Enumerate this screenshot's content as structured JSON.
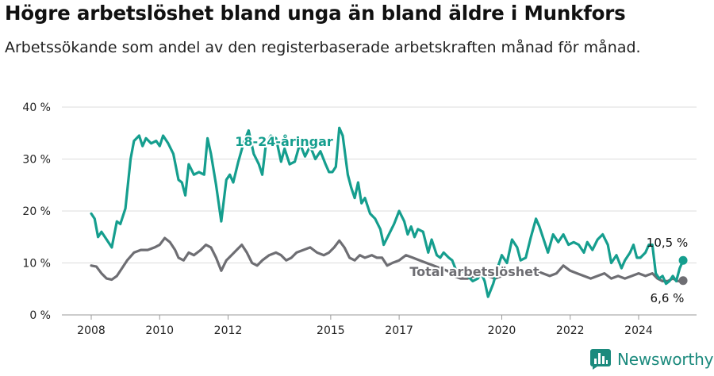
{
  "title": "Högre arbetslöshet bland unga än bland äldre i Munkfors",
  "subtitle": "Arbetssökande som andel av den registerbaserade arbetskraften månad för månad.",
  "brand": {
    "name": "Newsworthy",
    "logo_icon": "newsworthy-bar-chart-icon",
    "color": "#1b8a7d"
  },
  "chart_data": {
    "type": "line",
    "ylim": [
      0,
      40
    ],
    "yticks": [
      0,
      10,
      20,
      30,
      40
    ],
    "ytick_labels": [
      "0 %",
      "10 %",
      "20 %",
      "30 %",
      "40 %"
    ],
    "xlim": [
      2007.5,
      2025.7
    ],
    "xticks": [
      2008,
      2010,
      2012,
      2015,
      2017,
      2020,
      2022,
      2024
    ],
    "xtick_labels": [
      "2008",
      "2010",
      "2012",
      "2015",
      "2017",
      "2020",
      "2022",
      "2024"
    ],
    "grid": true,
    "series": [
      {
        "name": "18-24-åringar",
        "color": "#159e8e",
        "end_label": "10,5 %",
        "points": [
          [
            2008.0,
            19.5
          ],
          [
            2008.1,
            18.5
          ],
          [
            2008.2,
            15.0
          ],
          [
            2008.3,
            16.0
          ],
          [
            2008.45,
            14.5
          ],
          [
            2008.6,
            13.0
          ],
          [
            2008.75,
            18.0
          ],
          [
            2008.85,
            17.5
          ],
          [
            2009.0,
            20.5
          ],
          [
            2009.15,
            30.0
          ],
          [
            2009.25,
            33.5
          ],
          [
            2009.4,
            34.5
          ],
          [
            2009.5,
            32.5
          ],
          [
            2009.6,
            34.0
          ],
          [
            2009.75,
            33.0
          ],
          [
            2009.9,
            33.5
          ],
          [
            2010.0,
            32.5
          ],
          [
            2010.1,
            34.5
          ],
          [
            2010.25,
            33.0
          ],
          [
            2010.4,
            31.0
          ],
          [
            2010.55,
            26.0
          ],
          [
            2010.65,
            25.5
          ],
          [
            2010.75,
            23.0
          ],
          [
            2010.85,
            29.0
          ],
          [
            2011.0,
            27.0
          ],
          [
            2011.15,
            27.5
          ],
          [
            2011.3,
            27.0
          ],
          [
            2011.4,
            34.0
          ],
          [
            2011.5,
            31.0
          ],
          [
            2011.65,
            25.0
          ],
          [
            2011.8,
            18.0
          ],
          [
            2011.95,
            26.0
          ],
          [
            2012.05,
            27.0
          ],
          [
            2012.15,
            25.5
          ],
          [
            2012.3,
            29.5
          ],
          [
            2012.45,
            33.0
          ],
          [
            2012.6,
            35.5
          ],
          [
            2012.75,
            31.0
          ],
          [
            2012.9,
            29.0
          ],
          [
            2013.0,
            27.0
          ],
          [
            2013.1,
            32.5
          ],
          [
            2013.25,
            34.5
          ],
          [
            2013.4,
            34.0
          ],
          [
            2013.55,
            29.5
          ],
          [
            2013.65,
            32.0
          ],
          [
            2013.8,
            29.0
          ],
          [
            2013.95,
            29.5
          ],
          [
            2014.1,
            33.0
          ],
          [
            2014.25,
            30.5
          ],
          [
            2014.4,
            32.5
          ],
          [
            2014.55,
            30.0
          ],
          [
            2014.7,
            31.5
          ],
          [
            2014.85,
            29.0
          ],
          [
            2014.95,
            27.5
          ],
          [
            2015.05,
            27.5
          ],
          [
            2015.15,
            28.5
          ],
          [
            2015.25,
            36.0
          ],
          [
            2015.35,
            34.5
          ],
          [
            2015.5,
            27.0
          ],
          [
            2015.6,
            24.5
          ],
          [
            2015.7,
            22.5
          ],
          [
            2015.8,
            25.5
          ],
          [
            2015.9,
            21.5
          ],
          [
            2016.0,
            22.5
          ],
          [
            2016.15,
            19.5
          ],
          [
            2016.3,
            18.5
          ],
          [
            2016.45,
            16.5
          ],
          [
            2016.55,
            13.5
          ],
          [
            2016.7,
            15.5
          ],
          [
            2016.85,
            17.5
          ],
          [
            2017.0,
            20.0
          ],
          [
            2017.15,
            18.0
          ],
          [
            2017.25,
            15.5
          ],
          [
            2017.35,
            17.0
          ],
          [
            2017.45,
            15.0
          ],
          [
            2017.55,
            16.5
          ],
          [
            2017.7,
            16.0
          ],
          [
            2017.85,
            12.0
          ],
          [
            2017.95,
            14.5
          ],
          [
            2018.1,
            11.5
          ],
          [
            2018.2,
            11.0
          ],
          [
            2018.3,
            12.0
          ],
          [
            2018.45,
            11.0
          ],
          [
            2018.55,
            10.5
          ],
          [
            2018.7,
            8.0
          ],
          [
            2018.85,
            8.5
          ],
          [
            2019.0,
            7.5
          ],
          [
            2019.15,
            6.5
          ],
          [
            2019.3,
            7.0
          ],
          [
            2019.4,
            8.0
          ],
          [
            2019.5,
            6.5
          ],
          [
            2019.6,
            3.5
          ],
          [
            2019.75,
            6.0
          ],
          [
            2019.9,
            9.5
          ],
          [
            2020.0,
            11.5
          ],
          [
            2020.15,
            10.0
          ],
          [
            2020.3,
            14.5
          ],
          [
            2020.45,
            13.0
          ],
          [
            2020.55,
            10.5
          ],
          [
            2020.7,
            11.0
          ],
          [
            2020.85,
            15.0
          ],
          [
            2021.0,
            18.5
          ],
          [
            2021.1,
            17.0
          ],
          [
            2021.25,
            14.0
          ],
          [
            2021.35,
            12.0
          ],
          [
            2021.5,
            15.5
          ],
          [
            2021.65,
            14.0
          ],
          [
            2021.8,
            15.5
          ],
          [
            2021.95,
            13.5
          ],
          [
            2022.1,
            14.0
          ],
          [
            2022.25,
            13.5
          ],
          [
            2022.4,
            12.0
          ],
          [
            2022.5,
            14.0
          ],
          [
            2022.65,
            12.5
          ],
          [
            2022.8,
            14.5
          ],
          [
            2022.95,
            15.5
          ],
          [
            2023.1,
            13.5
          ],
          [
            2023.2,
            10.0
          ],
          [
            2023.35,
            11.5
          ],
          [
            2023.5,
            9.0
          ],
          [
            2023.6,
            10.5
          ],
          [
            2023.75,
            12.0
          ],
          [
            2023.85,
            13.5
          ],
          [
            2023.95,
            11.0
          ],
          [
            2024.05,
            11.0
          ],
          [
            2024.2,
            12.0
          ],
          [
            2024.3,
            13.5
          ],
          [
            2024.4,
            13.5
          ],
          [
            2024.5,
            8.0
          ],
          [
            2024.6,
            7.0
          ],
          [
            2024.7,
            7.5
          ],
          [
            2024.8,
            6.0
          ],
          [
            2024.9,
            6.5
          ],
          [
            2025.0,
            7.5
          ],
          [
            2025.1,
            6.5
          ],
          [
            2025.2,
            9.0
          ],
          [
            2025.3,
            10.5
          ]
        ]
      },
      {
        "name": "Total arbetslöshet",
        "color": "#6e6e73",
        "end_label": "6,6 %",
        "points": [
          [
            2008.0,
            9.5
          ],
          [
            2008.15,
            9.3
          ],
          [
            2008.3,
            8.0
          ],
          [
            2008.45,
            7.0
          ],
          [
            2008.6,
            6.8
          ],
          [
            2008.75,
            7.5
          ],
          [
            2008.9,
            9.0
          ],
          [
            2009.05,
            10.5
          ],
          [
            2009.25,
            12.0
          ],
          [
            2009.45,
            12.5
          ],
          [
            2009.65,
            12.5
          ],
          [
            2009.85,
            13.0
          ],
          [
            2010.0,
            13.5
          ],
          [
            2010.15,
            14.8
          ],
          [
            2010.3,
            14.0
          ],
          [
            2010.45,
            12.5
          ],
          [
            2010.55,
            11.0
          ],
          [
            2010.7,
            10.5
          ],
          [
            2010.85,
            12.0
          ],
          [
            2011.0,
            11.5
          ],
          [
            2011.2,
            12.5
          ],
          [
            2011.35,
            13.5
          ],
          [
            2011.5,
            13.0
          ],
          [
            2011.65,
            11.0
          ],
          [
            2011.8,
            8.5
          ],
          [
            2011.95,
            10.5
          ],
          [
            2012.1,
            11.5
          ],
          [
            2012.25,
            12.5
          ],
          [
            2012.4,
            13.5
          ],
          [
            2012.55,
            12.0
          ],
          [
            2012.7,
            10.0
          ],
          [
            2012.85,
            9.5
          ],
          [
            2013.0,
            10.5
          ],
          [
            2013.2,
            11.5
          ],
          [
            2013.4,
            12.0
          ],
          [
            2013.55,
            11.5
          ],
          [
            2013.7,
            10.5
          ],
          [
            2013.85,
            11.0
          ],
          [
            2014.0,
            12.0
          ],
          [
            2014.2,
            12.5
          ],
          [
            2014.4,
            13.0
          ],
          [
            2014.6,
            12.0
          ],
          [
            2014.8,
            11.5
          ],
          [
            2014.95,
            12.0
          ],
          [
            2015.1,
            13.0
          ],
          [
            2015.25,
            14.3
          ],
          [
            2015.4,
            13.0
          ],
          [
            2015.55,
            11.0
          ],
          [
            2015.7,
            10.5
          ],
          [
            2015.85,
            11.5
          ],
          [
            2016.0,
            11.0
          ],
          [
            2016.2,
            11.5
          ],
          [
            2016.35,
            11.0
          ],
          [
            2016.5,
            11.0
          ],
          [
            2016.65,
            9.5
          ],
          [
            2016.8,
            10.0
          ],
          [
            2017.0,
            10.5
          ],
          [
            2017.2,
            11.5
          ],
          [
            2017.4,
            11.0
          ],
          [
            2017.6,
            10.5
          ],
          [
            2017.8,
            10.0
          ],
          [
            2018.0,
            9.5
          ],
          [
            2018.2,
            9.0
          ],
          [
            2018.4,
            8.5
          ],
          [
            2018.6,
            7.5
          ],
          [
            2018.8,
            7.0
          ],
          [
            2019.0,
            7.0
          ],
          [
            2019.2,
            7.5
          ],
          [
            2019.4,
            8.0
          ],
          [
            2019.6,
            7.5
          ],
          [
            2019.8,
            7.0
          ],
          [
            2020.0,
            7.5
          ],
          [
            2020.2,
            8.0
          ],
          [
            2020.4,
            8.5
          ],
          [
            2020.6,
            8.5
          ],
          [
            2020.8,
            8.0
          ],
          [
            2021.0,
            8.5
          ],
          [
            2021.2,
            8.0
          ],
          [
            2021.4,
            7.5
          ],
          [
            2021.6,
            8.0
          ],
          [
            2021.8,
            9.5
          ],
          [
            2022.0,
            8.5
          ],
          [
            2022.2,
            8.0
          ],
          [
            2022.4,
            7.5
          ],
          [
            2022.6,
            7.0
          ],
          [
            2022.8,
            7.5
          ],
          [
            2023.0,
            8.0
          ],
          [
            2023.2,
            7.0
          ],
          [
            2023.4,
            7.5
          ],
          [
            2023.6,
            7.0
          ],
          [
            2023.8,
            7.5
          ],
          [
            2024.0,
            8.0
          ],
          [
            2024.2,
            7.5
          ],
          [
            2024.4,
            8.0
          ],
          [
            2024.55,
            7.0
          ],
          [
            2024.7,
            6.5
          ],
          [
            2024.85,
            6.5
          ],
          [
            2025.0,
            7.0
          ],
          [
            2025.15,
            6.5
          ],
          [
            2025.3,
            6.6
          ]
        ]
      }
    ]
  }
}
